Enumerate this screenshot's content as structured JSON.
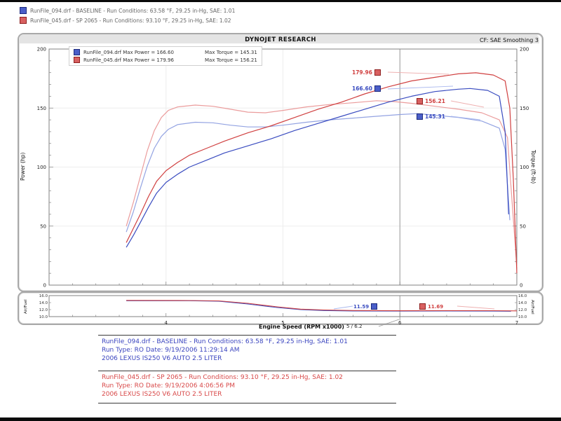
{
  "colors": {
    "blue": "#3a4cc0",
    "red": "#d04040",
    "blue_torque": "#93a3e2",
    "red_torque": "#eb9c9c"
  },
  "top_legend": {
    "rows": [
      {
        "swatch": "blue-square-icon",
        "text": "RunFile_094.drf - BASELINE  -  Run Conditions: 63.58 °F, 29.25 in-Hg, SAE: 1.01"
      },
      {
        "swatch": "red-square-icon",
        "text": "RunFile_045.drf - SP 2065  -  Run Conditions: 93.10 °F, 29.25 in-Hg, SAE: 1.02"
      }
    ]
  },
  "chart": {
    "title": "DYNOJET RESEARCH",
    "correction": "CF: SAE  Smoothing 3",
    "inner_legend": {
      "rows": [
        {
          "left": "RunFile_094.drf Max Power = 166.60",
          "right": "Max Torque = 145.31"
        },
        {
          "left": "RunFile_045.drf Max Power = 179.96",
          "right": "Max Torque = 156.21"
        }
      ]
    }
  },
  "axes": {
    "power": "Power (hp)",
    "torque": "Torque (ft-lb)",
    "afr_left": "Air/Fuel",
    "afr_right": "Air/Fuel",
    "x": "Engine Speed (RPM x1000)"
  },
  "callouts": {
    "power_red": "179.96",
    "power_blue": "166.60",
    "torque_red": "156.21",
    "torque_blue": "145.31",
    "afr_blue": "11.59",
    "afr_red": "11.69",
    "cursor_readout": "5 / 6.2"
  },
  "footer": {
    "rows": [
      {
        "lines": [
          "RunFile_094.drf - BASELINE  -  Run Conditions: 63.58 °F, 29.25 in-Hg, SAE: 1.01",
          "Run Type: RO  Date: 9/19/2006 11:29:14 AM",
          "2006 LEXUS IS250 V6 AUTO 2.5 LITER"
        ]
      },
      {
        "lines": [
          "RunFile_045.drf - SP 2065  -  Run Conditions: 93.10 °F, 29.25 in-Hg, SAE: 1.02",
          "Run Type: RO  Date: 9/19/2006 4:06:56 PM",
          "2006 LEXUS IS250 V6 AUTO 2.5 LITER"
        ]
      }
    ]
  },
  "chart_data": [
    {
      "type": "line",
      "title": "DYNOJET RESEARCH",
      "xlabel": "Engine Speed (RPM x1000)",
      "ylabel_left": "Power (hp)",
      "ylabel_right": "Torque (ft-lb)",
      "xlim": [
        3,
        7
      ],
      "ylim": [
        0,
        200
      ],
      "x_ticks": [
        4,
        5,
        6,
        7
      ],
      "y_ticks": [
        0,
        50,
        100,
        150,
        200
      ],
      "x_gridlines": [
        4,
        5,
        6
      ],
      "y_gridlines": [
        50,
        100,
        150
      ],
      "cursor_rpm": 6.0,
      "legend_position": "top-left",
      "series": [
        {
          "id": "baseline-torque",
          "name": "BASELINE Torque (ft-lb)",
          "color": "#93a3e2",
          "points": [
            [
              3.66,
              45
            ],
            [
              3.72,
              62
            ],
            [
              3.78,
              82
            ],
            [
              3.84,
              101
            ],
            [
              3.9,
              116
            ],
            [
              3.96,
              126
            ],
            [
              4.02,
              132
            ],
            [
              4.1,
              136
            ],
            [
              4.25,
              138
            ],
            [
              4.4,
              137.5
            ],
            [
              4.55,
              135.5
            ],
            [
              4.7,
              134
            ],
            [
              4.85,
              134
            ],
            [
              5.0,
              135.5
            ],
            [
              5.2,
              138
            ],
            [
              5.4,
              140
            ],
            [
              5.6,
              141.5
            ],
            [
              5.8,
              143
            ],
            [
              6.0,
              144.5
            ],
            [
              6.15,
              145.3
            ],
            [
              6.3,
              144
            ],
            [
              6.5,
              142
            ],
            [
              6.7,
              139
            ],
            [
              6.85,
              133
            ],
            [
              6.9,
              115
            ],
            [
              6.94,
              55
            ]
          ]
        },
        {
          "id": "sp2065-torque",
          "name": "SP 2065 Torque (ft-lb)",
          "color": "#eb9c9c",
          "points": [
            [
              3.66,
              50
            ],
            [
              3.72,
              70
            ],
            [
              3.78,
              92
            ],
            [
              3.84,
              114
            ],
            [
              3.9,
              131
            ],
            [
              3.96,
              142
            ],
            [
              4.02,
              148
            ],
            [
              4.1,
              151
            ],
            [
              4.25,
              152.5
            ],
            [
              4.4,
              151.5
            ],
            [
              4.55,
              149
            ],
            [
              4.7,
              146.5
            ],
            [
              4.85,
              146
            ],
            [
              5.0,
              148
            ],
            [
              5.2,
              151
            ],
            [
              5.4,
              153
            ],
            [
              5.6,
              154.5
            ],
            [
              5.8,
              156.2
            ],
            [
              5.95,
              155.5
            ],
            [
              6.1,
              154
            ],
            [
              6.3,
              151.5
            ],
            [
              6.5,
              149
            ],
            [
              6.7,
              146
            ],
            [
              6.85,
              140
            ],
            [
              6.92,
              125
            ],
            [
              6.96,
              70
            ],
            [
              7.0,
              15
            ]
          ]
        },
        {
          "id": "baseline-power",
          "name": "BASELINE Power (hp)",
          "color": "#3a4cc0",
          "points": [
            [
              3.66,
              32
            ],
            [
              3.72,
              42
            ],
            [
              3.78,
              53
            ],
            [
              3.85,
              66
            ],
            [
              3.92,
              78
            ],
            [
              4.0,
              87
            ],
            [
              4.1,
              94
            ],
            [
              4.2,
              100
            ],
            [
              4.35,
              106
            ],
            [
              4.5,
              112
            ],
            [
              4.7,
              118
            ],
            [
              4.9,
              124
            ],
            [
              5.1,
              131
            ],
            [
              5.3,
              137
            ],
            [
              5.5,
              143
            ],
            [
              5.7,
              149
            ],
            [
              5.9,
              155
            ],
            [
              6.1,
              160
            ],
            [
              6.3,
              164
            ],
            [
              6.5,
              166
            ],
            [
              6.6,
              166.6
            ],
            [
              6.75,
              165
            ],
            [
              6.85,
              160
            ],
            [
              6.9,
              130
            ],
            [
              6.93,
              60
            ]
          ]
        },
        {
          "id": "sp2065-power",
          "name": "SP 2065 Power (hp)",
          "color": "#d04040",
          "points": [
            [
              3.66,
              36
            ],
            [
              3.72,
              48
            ],
            [
              3.78,
              60
            ],
            [
              3.85,
              75
            ],
            [
              3.92,
              88
            ],
            [
              4.0,
              97
            ],
            [
              4.1,
              104
            ],
            [
              4.2,
              110
            ],
            [
              4.35,
              116
            ],
            [
              4.5,
              122
            ],
            [
              4.7,
              129
            ],
            [
              4.9,
              135
            ],
            [
              5.1,
              142
            ],
            [
              5.3,
              149
            ],
            [
              5.5,
              155
            ],
            [
              5.7,
              162
            ],
            [
              5.9,
              168
            ],
            [
              6.1,
              173
            ],
            [
              6.3,
              176
            ],
            [
              6.5,
              179
            ],
            [
              6.65,
              179.9
            ],
            [
              6.8,
              178
            ],
            [
              6.9,
              173
            ],
            [
              6.94,
              150
            ],
            [
              6.97,
              90
            ],
            [
              7.0,
              10
            ]
          ]
        }
      ]
    },
    {
      "type": "line",
      "ylabel": "Air/Fuel",
      "xlim": [
        3,
        7
      ],
      "ylim": [
        10,
        16
      ],
      "y_ticks": [
        {
          "v": 16,
          "t": "16.0"
        },
        {
          "v": 14,
          "t": "14.0"
        },
        {
          "v": 12,
          "t": "12.0"
        },
        {
          "v": 10,
          "t": "10.0"
        }
      ],
      "cursor_rpm": 6.0,
      "series": [
        {
          "id": "baseline-afr",
          "name": "BASELINE Air/Fuel",
          "color": "#3a4cc0",
          "points": [
            [
              3.66,
              14.55
            ],
            [
              4.2,
              14.55
            ],
            [
              4.45,
              14.4
            ],
            [
              4.7,
              13.6
            ],
            [
              4.95,
              12.6
            ],
            [
              5.15,
              12.0
            ],
            [
              5.35,
              11.75
            ],
            [
              5.6,
              11.62
            ],
            [
              6.0,
              11.59
            ],
            [
              6.4,
              11.6
            ],
            [
              6.8,
              11.58
            ],
            [
              6.95,
              11.55
            ]
          ]
        },
        {
          "id": "sp2065-afr",
          "name": "SP 2065 Air/Fuel",
          "color": "#d04040",
          "points": [
            [
              3.66,
              14.65
            ],
            [
              4.2,
              14.6
            ],
            [
              4.45,
              14.5
            ],
            [
              4.7,
              13.8
            ],
            [
              4.95,
              12.8
            ],
            [
              5.15,
              12.15
            ],
            [
              5.35,
              11.9
            ],
            [
              5.6,
              11.75
            ],
            [
              6.0,
              11.69
            ],
            [
              6.4,
              11.72
            ],
            [
              6.8,
              11.7
            ],
            [
              7.0,
              11.65
            ]
          ]
        }
      ]
    }
  ]
}
